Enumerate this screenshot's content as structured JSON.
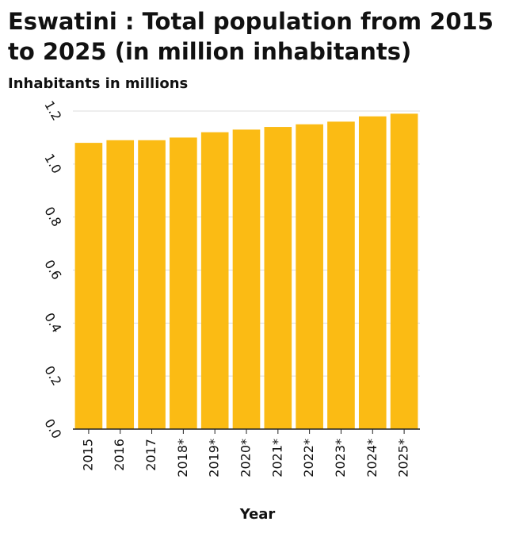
{
  "chart_data": {
    "type": "bar",
    "title": "Eswatini : Total population from 2015 to 2025 (in million inhabitants)",
    "ylabel": "Inhabitants in millions",
    "xlabel": "Year",
    "categories": [
      "2015",
      "2016",
      "2017",
      "2018*",
      "2019*",
      "2020*",
      "2021*",
      "2022*",
      "2023*",
      "2024*",
      "2025*"
    ],
    "values": [
      1.08,
      1.09,
      1.09,
      1.1,
      1.12,
      1.13,
      1.14,
      1.15,
      1.16,
      1.18,
      1.19
    ],
    "ylim": [
      0,
      1.2
    ],
    "yticks": [
      "0.0",
      "0.2",
      "0.4",
      "0.6",
      "0.8",
      "1.0",
      "1.2"
    ],
    "grid": true,
    "bar_color": "#FBBB14",
    "grid_color": "#dddddd"
  }
}
